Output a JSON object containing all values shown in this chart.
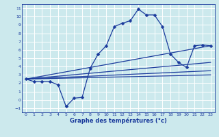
{
  "title": "Graphe des températures (°c)",
  "background_color": "#cce9ed",
  "grid_color": "#ffffff",
  "line_color": "#1a3a9c",
  "xlim": [
    -0.5,
    23.5
  ],
  "ylim": [
    -1.5,
    11.5
  ],
  "xticks": [
    0,
    1,
    2,
    3,
    4,
    5,
    6,
    7,
    8,
    9,
    10,
    11,
    12,
    13,
    14,
    15,
    16,
    17,
    18,
    19,
    20,
    21,
    22,
    23
  ],
  "yticks": [
    -1,
    0,
    1,
    2,
    3,
    4,
    5,
    6,
    7,
    8,
    9,
    10,
    11
  ],
  "main_line": {
    "x": [
      0,
      1,
      2,
      3,
      4,
      5,
      6,
      7,
      8,
      9,
      10,
      11,
      12,
      13,
      14,
      15,
      16,
      17,
      18,
      19,
      20,
      21,
      22,
      23
    ],
    "y": [
      2.5,
      2.2,
      2.2,
      2.2,
      1.8,
      -0.8,
      0.2,
      0.3,
      3.8,
      5.5,
      6.5,
      8.8,
      9.2,
      9.5,
      10.9,
      10.2,
      10.2,
      8.8,
      5.5,
      4.5,
      3.9,
      6.5,
      6.6,
      6.5
    ]
  },
  "trend_lines": [
    {
      "x": [
        0,
        23
      ],
      "y": [
        2.5,
        6.5
      ]
    },
    {
      "x": [
        0,
        23
      ],
      "y": [
        2.5,
        4.5
      ]
    },
    {
      "x": [
        0,
        23
      ],
      "y": [
        2.5,
        3.5
      ]
    },
    {
      "x": [
        0,
        23
      ],
      "y": [
        2.5,
        3.0
      ]
    }
  ],
  "xlabel_fontsize": 6,
  "tick_fontsize": 4.5,
  "line_width": 0.9,
  "marker_size": 2.5
}
